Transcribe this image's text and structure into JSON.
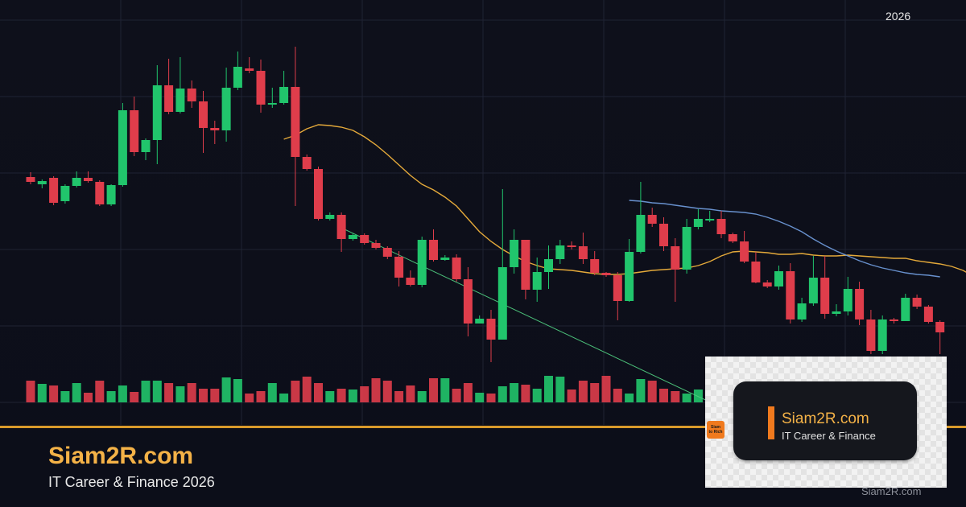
{
  "chart_data": {
    "type": "candlestick",
    "candles": [
      [
        220,
        226,
        214,
        229,
        "down"
      ],
      [
        225,
        229,
        223,
        234,
        "up"
      ],
      [
        221,
        252,
        219,
        255,
        "down"
      ],
      [
        250,
        231,
        229,
        253,
        "up"
      ],
      [
        231,
        221,
        213,
        233,
        "up"
      ],
      [
        225,
        221,
        213,
        227,
        "down"
      ],
      [
        226,
        254,
        224,
        256,
        "down"
      ],
      [
        254,
        230,
        229,
        256,
        "up"
      ],
      [
        230,
        137,
        128,
        232,
        "up"
      ],
      [
        137,
        189,
        120,
        194,
        "down"
      ],
      [
        189,
        174,
        172,
        199,
        "up"
      ],
      [
        174,
        106,
        81,
        204,
        "up"
      ],
      [
        106,
        139,
        73,
        142,
        "down"
      ],
      [
        139,
        110,
        71,
        141,
        "up"
      ],
      [
        110,
        126,
        100,
        134,
        "down"
      ],
      [
        126,
        159,
        113,
        190,
        "down"
      ],
      [
        159,
        162,
        150,
        179,
        "down"
      ],
      [
        162,
        109,
        84,
        176,
        "up"
      ],
      [
        109,
        83,
        64,
        112,
        "up"
      ],
      [
        85,
        88,
        71,
        91,
        "down"
      ],
      [
        88,
        130,
        74,
        140,
        "down"
      ],
      [
        130,
        128,
        109,
        134,
        "up"
      ],
      [
        128,
        108,
        88,
        130,
        "up"
      ],
      [
        108,
        195,
        58,
        256,
        "down"
      ],
      [
        195,
        210,
        192,
        212,
        "down"
      ],
      [
        210,
        272,
        207,
        274,
        "down"
      ],
      [
        272,
        267,
        264,
        274,
        "up"
      ],
      [
        267,
        297,
        264,
        313,
        "down"
      ],
      [
        297,
        292,
        290,
        299,
        "up"
      ],
      [
        292,
        302,
        290,
        304,
        "down"
      ],
      [
        302,
        308,
        298,
        310,
        "down"
      ],
      [
        308,
        319,
        306,
        322,
        "down"
      ],
      [
        319,
        345,
        312,
        356,
        "down"
      ],
      [
        345,
        354,
        336,
        356,
        "down"
      ],
      [
        354,
        298,
        294,
        357,
        "up"
      ],
      [
        298,
        323,
        285,
        325,
        "down"
      ],
      [
        323,
        320,
        317,
        324,
        "up"
      ],
      [
        320,
        347,
        316,
        350,
        "down"
      ],
      [
        347,
        402,
        332,
        418,
        "down"
      ],
      [
        402,
        396,
        392,
        402,
        "up"
      ],
      [
        396,
        422,
        385,
        450,
        "down"
      ],
      [
        422,
        332,
        235,
        422,
        "up"
      ],
      [
        332,
        298,
        285,
        340,
        "up"
      ],
      [
        298,
        360,
        298,
        372,
        "down"
      ],
      [
        360,
        338,
        320,
        375,
        "up"
      ],
      [
        338,
        322,
        305,
        359,
        "up"
      ],
      [
        322,
        305,
        298,
        328,
        "up"
      ],
      [
        305,
        306,
        300,
        310,
        "down"
      ],
      [
        306,
        322,
        289,
        328,
        "down"
      ],
      [
        322,
        339,
        312,
        342,
        "down"
      ],
      [
        339,
        342,
        338,
        344,
        "down"
      ],
      [
        342,
        374,
        338,
        398,
        "down"
      ],
      [
        374,
        313,
        297,
        375,
        "up"
      ],
      [
        313,
        267,
        226,
        315,
        "up"
      ],
      [
        267,
        278,
        258,
        282,
        "down"
      ],
      [
        278,
        306,
        270,
        312,
        "down"
      ],
      [
        306,
        335,
        296,
        375,
        "down"
      ],
      [
        335,
        282,
        272,
        340,
        "up"
      ],
      [
        282,
        272,
        260,
        285,
        "up"
      ],
      [
        272,
        272,
        262,
        276,
        "up"
      ],
      [
        272,
        291,
        262,
        296,
        "down"
      ],
      [
        291,
        300,
        289,
        302,
        "down"
      ],
      [
        300,
        325,
        287,
        327,
        "down"
      ],
      [
        325,
        351,
        313,
        352,
        "down"
      ],
      [
        351,
        356,
        348,
        358,
        "down"
      ],
      [
        356,
        337,
        330,
        360,
        "up"
      ],
      [
        337,
        397,
        327,
        402,
        "down"
      ],
      [
        397,
        377,
        370,
        400,
        "up"
      ],
      [
        377,
        345,
        318,
        380,
        "up"
      ],
      [
        345,
        390,
        318,
        396,
        "down"
      ],
      [
        390,
        387,
        378,
        393,
        "up"
      ],
      [
        387,
        359,
        344,
        392,
        "up"
      ],
      [
        359,
        397,
        350,
        404,
        "down"
      ],
      [
        397,
        436,
        385,
        440,
        "down"
      ],
      [
        436,
        397,
        392,
        440,
        "up"
      ],
      [
        397,
        399,
        395,
        402,
        "down"
      ],
      [
        399,
        370,
        365,
        399,
        "up"
      ],
      [
        370,
        381,
        366,
        384,
        "down"
      ],
      [
        381,
        400,
        379,
        402,
        "down"
      ],
      [
        400,
        413,
        398,
        440,
        "down"
      ]
    ],
    "volumes": [
      27,
      23,
      21,
      14,
      24,
      12,
      27,
      14,
      21,
      13,
      27,
      27,
      24,
      20,
      24,
      17,
      17,
      31,
      29,
      11,
      14,
      24,
      11,
      27,
      32,
      24,
      14,
      17,
      16,
      20,
      30,
      27,
      14,
      21,
      14,
      30,
      30,
      17,
      24,
      12,
      11,
      20,
      24,
      22,
      17,
      33,
      32,
      16,
      27,
      24,
      33,
      17,
      11,
      29,
      27,
      17,
      14,
      11,
      16,
      22,
      18,
      24,
      12,
      30,
      14,
      22,
      27,
      21,
      20,
      24,
      16,
      12,
      30,
      17,
      30,
      18,
      17,
      12,
      16,
      31
    ],
    "moving_averages": [
      {
        "color": "#f0b23c",
        "start": 22,
        "values": [
          173,
          168,
          160,
          155,
          156,
          158,
          162,
          170,
          180,
          192,
          205,
          218,
          229,
          236,
          245,
          256,
          272,
          288,
          300,
          310,
          318,
          325,
          330,
          334,
          335,
          336,
          338,
          340,
          341,
          341,
          340,
          338,
          336,
          335,
          334,
          333,
          330,
          325,
          318,
          313,
          312,
          313,
          314,
          316,
          316,
          315,
          317,
          318,
          318,
          317,
          318,
          319,
          320,
          321,
          321,
          324,
          326,
          328,
          331,
          336,
          344,
          350,
          354,
          358,
          362,
          370
        ]
      },
      {
        "color": "#6e99d8",
        "start": 52,
        "values": [
          249,
          250,
          252,
          253,
          255,
          257,
          259,
          260,
          262,
          263,
          264,
          266,
          270,
          275,
          281,
          288,
          297,
          305,
          312,
          318,
          324,
          329,
          333,
          336,
          339,
          341,
          342,
          344
        ]
      },
      {
        "color": "#4ec77d",
        "start": 27,
        "values": [
          285,
          520
        ]
      }
    ],
    "title": "",
    "xlabel": "2026",
    "grid": true
  },
  "colors": {
    "up": "#21c56c",
    "down": "#df3d4b",
    "accent": "#f4b247",
    "divider": "#d99a2b",
    "background": "#0d0f1a"
  },
  "brand": {
    "title": "Siam2R.com",
    "subtitle": "IT Career & Finance 2026",
    "footer": "Siam2R.com"
  },
  "card": {
    "title": "Siam2R.com",
    "subtitle": "IT Career & Finance",
    "logo_line1": "Siam",
    "logo_line2": "to Rich"
  }
}
